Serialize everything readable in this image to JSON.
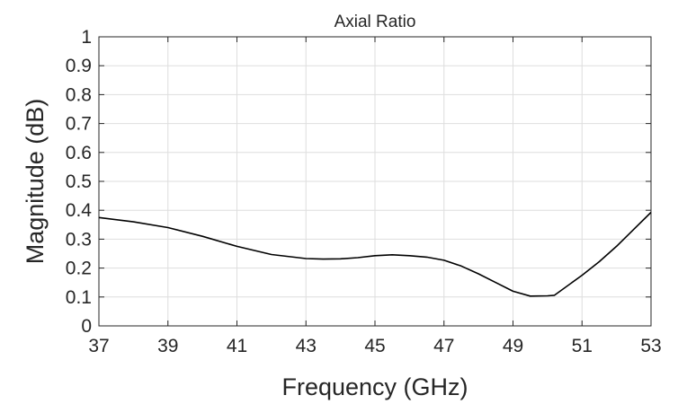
{
  "chart_data": {
    "type": "line",
    "title": "Axial Ratio",
    "xlabel": "Frequency (GHz)",
    "ylabel": "Magnitude (dB)",
    "xlim": [
      37,
      53
    ],
    "ylim": [
      0,
      1
    ],
    "xticks": [
      "37",
      "39",
      "41",
      "43",
      "45",
      "47",
      "49",
      "51",
      "53"
    ],
    "yticks": [
      "0",
      "0.1",
      "0.2",
      "0.3",
      "0.4",
      "0.5",
      "0.6",
      "0.7",
      "0.8",
      "0.9",
      "1"
    ],
    "grid": true,
    "line_color": "#000000",
    "series": [
      {
        "x": [
          37,
          38,
          39,
          40,
          41,
          42,
          43,
          43.5,
          44,
          44.5,
          45,
          45.5,
          46,
          46.5,
          47,
          47.5,
          48,
          48.5,
          49,
          49.5,
          50,
          50.2,
          51,
          51.5,
          52,
          53
        ],
        "y": [
          0.375,
          0.36,
          0.34,
          0.31,
          0.275,
          0.247,
          0.233,
          0.231,
          0.232,
          0.236,
          0.243,
          0.246,
          0.243,
          0.238,
          0.227,
          0.207,
          0.18,
          0.15,
          0.12,
          0.103,
          0.104,
          0.106,
          0.175,
          0.222,
          0.275,
          0.393
        ]
      }
    ]
  }
}
